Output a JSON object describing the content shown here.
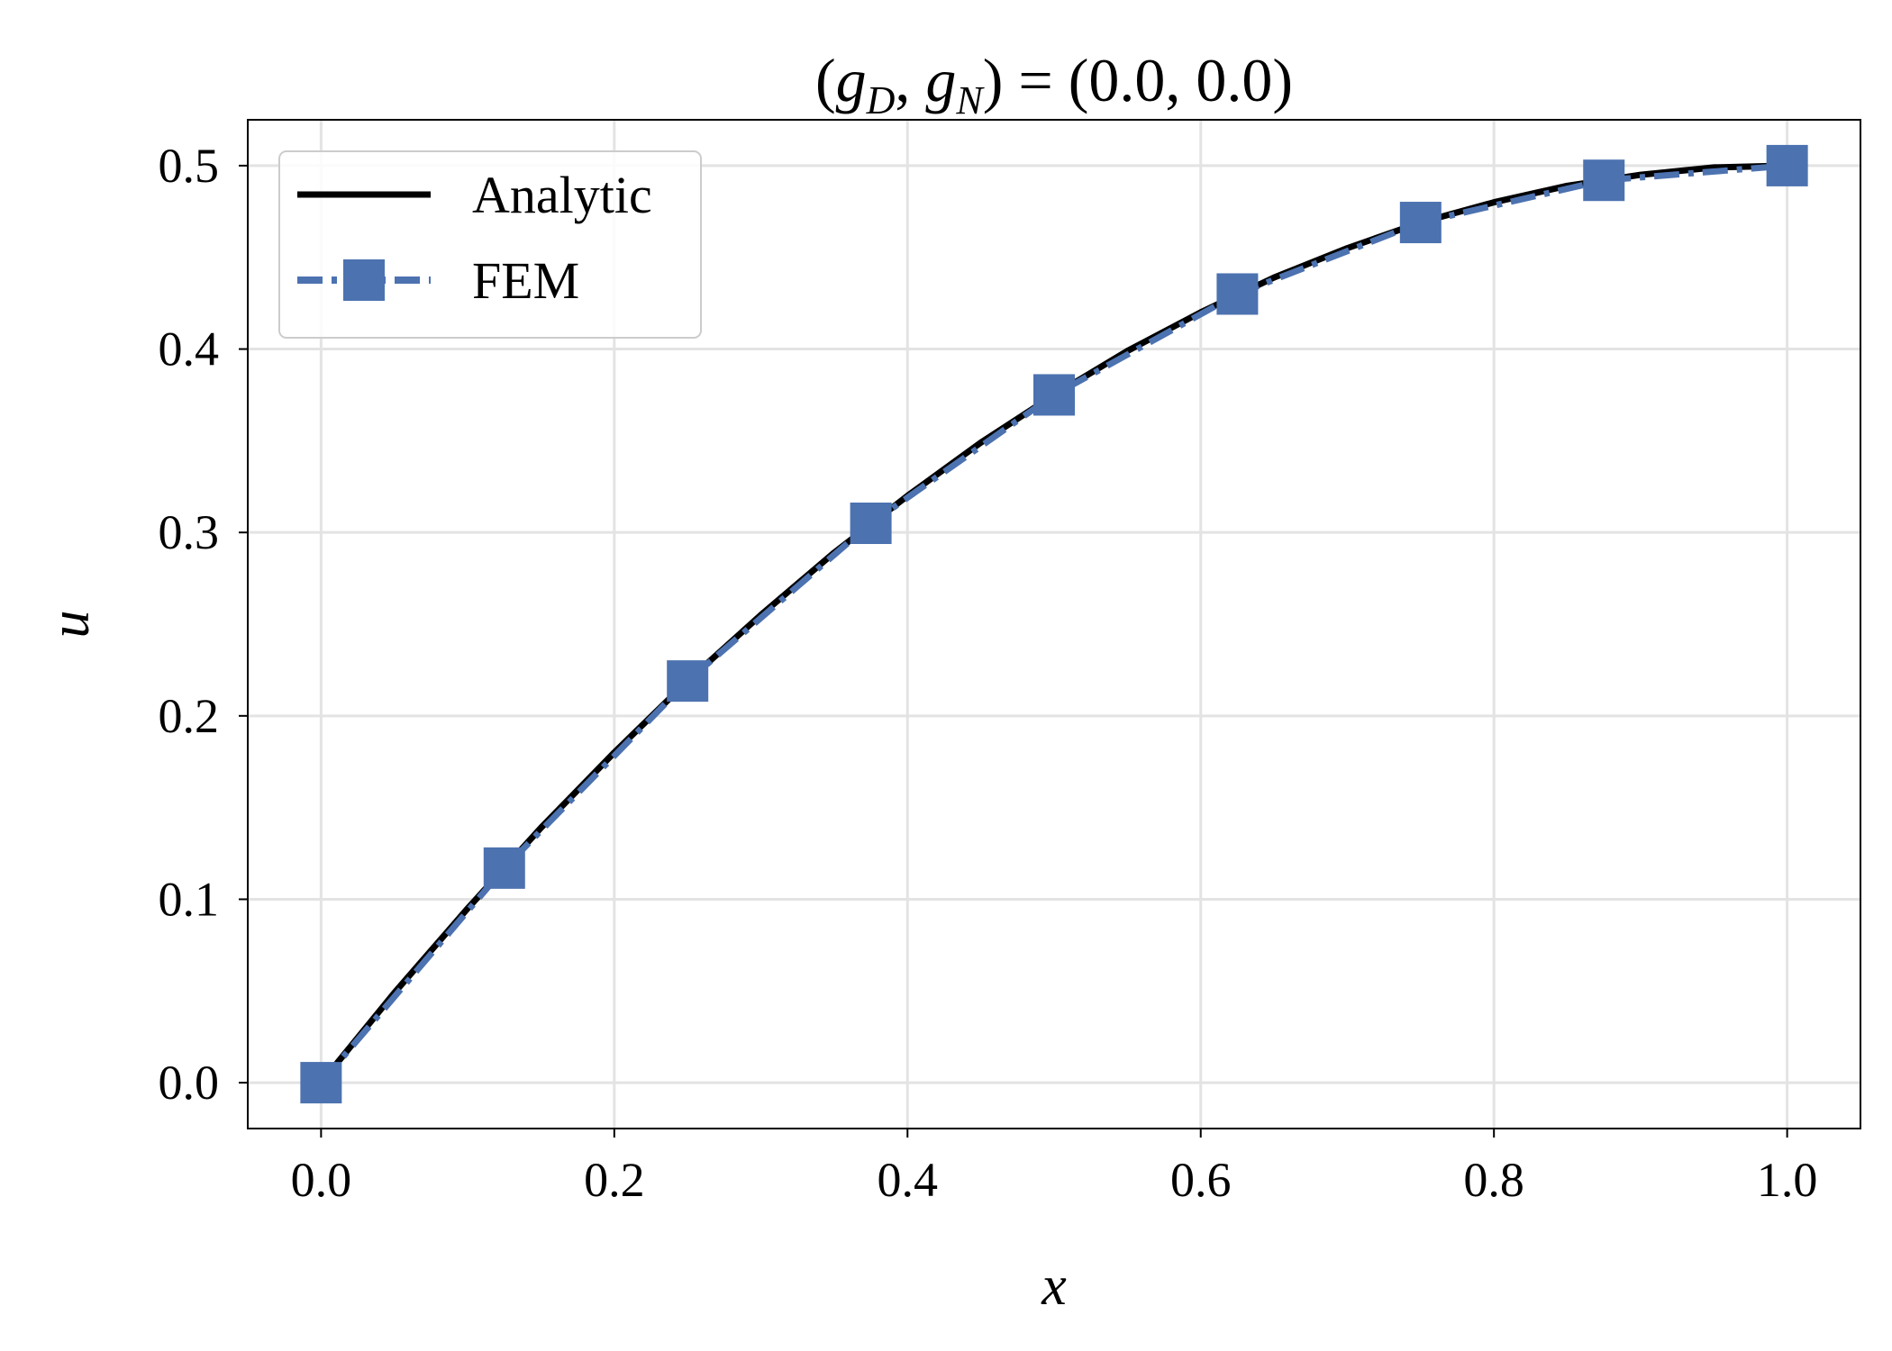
{
  "chart_data": {
    "type": "line",
    "title": {
      "prefix": "(",
      "g1": "g",
      "g1_sub": "D",
      "sep": ", ",
      "g2": "g",
      "g2_sub": "N",
      "suffix": ") = (0.0, 0.0)"
    },
    "xlabel": "x",
    "ylabel": "u",
    "xlim": [
      -0.05,
      1.05
    ],
    "ylim": [
      -0.025,
      0.525
    ],
    "xticks": [
      0.0,
      0.2,
      0.4,
      0.6,
      0.8,
      1.0
    ],
    "yticks": [
      0.0,
      0.1,
      0.2,
      0.3,
      0.4,
      0.5
    ],
    "grid": true,
    "legend_position": "top-left",
    "series": [
      {
        "name": "Analytic",
        "style": "solid",
        "marker": "none",
        "color": "#000000",
        "x": [
          0.0,
          0.05,
          0.1,
          0.15,
          0.2,
          0.25,
          0.3,
          0.35,
          0.4,
          0.45,
          0.5,
          0.55,
          0.6,
          0.65,
          0.7,
          0.75,
          0.8,
          0.85,
          0.9,
          0.95,
          1.0
        ],
        "y": [
          0.0,
          0.049,
          0.095,
          0.139,
          0.18,
          0.219,
          0.255,
          0.289,
          0.32,
          0.349,
          0.375,
          0.399,
          0.42,
          0.439,
          0.455,
          0.469,
          0.48,
          0.489,
          0.495,
          0.499,
          0.5
        ]
      },
      {
        "name": "FEM",
        "style": "dashdot",
        "marker": "square",
        "color": "#4c72b0",
        "x": [
          0.0,
          0.125,
          0.25,
          0.375,
          0.5,
          0.625,
          0.75,
          0.875,
          1.0
        ],
        "y": [
          0.0,
          0.117,
          0.219,
          0.305,
          0.375,
          0.43,
          0.469,
          0.492,
          0.5
        ]
      }
    ]
  }
}
